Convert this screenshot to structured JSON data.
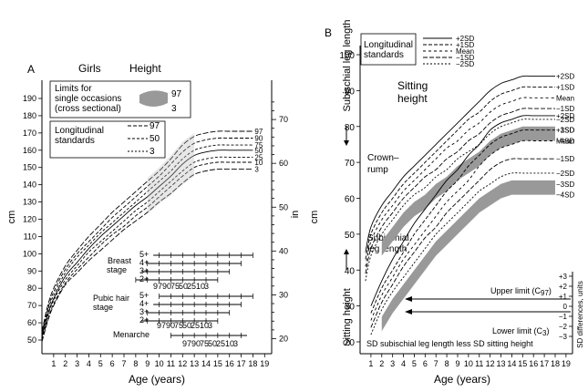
{
  "chart_data": [
    {
      "panel": "A",
      "type": "line",
      "title": "Girls",
      "subtitle": "Height",
      "xlabel": "Age (years)",
      "ylabel_left": "cm",
      "ylabel_right": "in",
      "x_ticks": [
        1,
        2,
        3,
        4,
        5,
        6,
        7,
        8,
        9,
        10,
        11,
        12,
        13,
        14,
        15,
        16,
        17,
        18,
        19
      ],
      "xlim": [
        0,
        19
      ],
      "ylim_cm": [
        45,
        192
      ],
      "y_ticks_cm": [
        50,
        60,
        70,
        80,
        90,
        100,
        110,
        120,
        130,
        140,
        150,
        160,
        170,
        180,
        190
      ],
      "y_ticks_in": [
        20,
        30,
        40,
        50,
        60,
        70
      ],
      "legend_single": "Limits for single occasions (cross sectional)",
      "legend_single_lines": [
        "Limits for",
        "single occasions",
        "(cross sectional)"
      ],
      "legend_single_labels": [
        "97",
        "3"
      ],
      "legend_long": "Longitudinal standards",
      "legend_long_lines": [
        "Longitudinal",
        "standards"
      ],
      "legend_long_labels": [
        "97",
        "50",
        "3"
      ],
      "series": [
        {
          "name": "97",
          "x": [
            0,
            0.5,
            1,
            2,
            3,
            4,
            5,
            6,
            7,
            8,
            9,
            10,
            11,
            12,
            13,
            14,
            15,
            16,
            17,
            18
          ],
          "values": [
            55,
            70,
            80,
            93,
            102,
            110,
            117,
            124,
            130,
            136,
            142,
            148,
            155,
            163,
            168,
            170,
            171,
            171,
            171,
            171
          ]
        },
        {
          "name": "90",
          "x": [
            0,
            0.5,
            1,
            2,
            3,
            4,
            5,
            6,
            7,
            8,
            9,
            10,
            11,
            12,
            13,
            14,
            15,
            16,
            17,
            18
          ],
          "values": [
            54,
            68,
            78,
            91,
            100,
            107,
            114,
            121,
            127,
            133,
            139,
            145,
            152,
            159,
            164,
            166,
            167,
            167,
            167,
            167
          ]
        },
        {
          "name": "75",
          "x": [
            0,
            0.5,
            1,
            2,
            3,
            4,
            5,
            6,
            7,
            8,
            9,
            10,
            11,
            12,
            13,
            14,
            15,
            16,
            17,
            18
          ],
          "values": [
            53,
            67,
            76,
            89,
            98,
            105,
            112,
            118,
            124,
            130,
            136,
            142,
            148,
            155,
            160,
            162,
            163,
            163,
            163,
            163
          ]
        },
        {
          "name": "50",
          "x": [
            0,
            0.5,
            1,
            2,
            3,
            4,
            5,
            6,
            7,
            8,
            9,
            10,
            11,
            12,
            13,
            14,
            15,
            16,
            17,
            18
          ],
          "values": [
            52,
            65,
            74,
            87,
            95,
            103,
            110,
            116,
            122,
            128,
            133,
            139,
            145,
            152,
            157,
            159,
            160,
            160,
            160,
            160
          ]
        },
        {
          "name": "25",
          "x": [
            0,
            0.5,
            1,
            2,
            3,
            4,
            5,
            6,
            7,
            8,
            9,
            10,
            11,
            12,
            13,
            14,
            15,
            16,
            17,
            18
          ],
          "values": [
            51,
            64,
            73,
            85,
            93,
            101,
            107,
            113,
            119,
            125,
            130,
            136,
            142,
            148,
            153,
            155,
            156,
            156,
            156,
            156
          ]
        },
        {
          "name": "10",
          "x": [
            0,
            0.5,
            1,
            2,
            3,
            4,
            5,
            6,
            7,
            8,
            9,
            10,
            11,
            12,
            13,
            14,
            15,
            16,
            17,
            18
          ],
          "values": [
            50,
            62,
            71,
            83,
            91,
            98,
            105,
            111,
            116,
            122,
            127,
            133,
            139,
            145,
            150,
            152,
            153,
            153,
            153,
            153
          ]
        },
        {
          "name": "3",
          "x": [
            0,
            0.5,
            1,
            2,
            3,
            4,
            5,
            6,
            7,
            8,
            9,
            10,
            11,
            12,
            13,
            14,
            15,
            16,
            17,
            18
          ],
          "values": [
            49,
            61,
            70,
            82,
            89,
            96,
            102,
            108,
            114,
            119,
            124,
            130,
            135,
            141,
            146,
            148,
            149,
            149,
            149,
            149
          ]
        }
      ],
      "puberty": {
        "breast_stage_lines": [
          "Breast",
          "stage"
        ],
        "breast_stage_labels": [
          "5+",
          "4+",
          "3+",
          "2+"
        ],
        "pubic_hair_stage_lines": [
          "Pubic hair",
          "stage"
        ],
        "pubic_hair_stage_labels": [
          "5+",
          "4+",
          "3+",
          "2+"
        ],
        "menarche_label": "Menarche",
        "centile_labels": [
          "97",
          "90",
          "75",
          "50",
          "25",
          "10",
          "3"
        ]
      }
    },
    {
      "panel": "B",
      "type": "line",
      "xlabel": "Age (years)",
      "ylabel_left": "cm",
      "top_label": "Sitting height",
      "top_label_lines": [
        "Sitting",
        "height"
      ],
      "crown_rump_label": "Crown–rump",
      "crown_rump_lines": [
        "Crown–",
        "rump"
      ],
      "subischial_label": "Subischial leg length",
      "subischial_lines": [
        "Subischial",
        "leg length"
      ],
      "side_label_top": "Subischial leg length",
      "side_label_bottom": "Sitting height",
      "x_ticks": [
        1,
        2,
        3,
        4,
        5,
        6,
        7,
        8,
        9,
        10,
        11,
        12,
        13,
        14,
        15,
        16,
        17,
        18,
        19
      ],
      "xlim": [
        0,
        19
      ],
      "ylim_cm": [
        17,
        102
      ],
      "y_ticks_cm": [
        20,
        30,
        40,
        50,
        60,
        70,
        80,
        90,
        100
      ],
      "legend": "Longitudinal standards",
      "legend_lines": [
        "Longitudinal",
        "standards"
      ],
      "legend_labels": [
        "+2SD",
        "+1SD",
        "Mean",
        "−1SD",
        "−2SD"
      ],
      "sitting_height_series": [
        {
          "name": "+2SD",
          "x": [
            0.5,
            1,
            2,
            3,
            4,
            5,
            6,
            7,
            8,
            9,
            10,
            11,
            12,
            13,
            14,
            15,
            16,
            17,
            18
          ],
          "values": [
            45,
            52,
            58,
            62,
            66,
            69,
            72,
            75,
            78,
            81,
            84,
            87,
            90,
            92,
            93,
            94,
            94,
            94,
            94
          ]
        },
        {
          "name": "+1SD",
          "x": [
            0.5,
            1,
            2,
            3,
            4,
            5,
            6,
            7,
            8,
            9,
            10,
            11,
            12,
            13,
            14,
            15,
            16,
            17,
            18
          ],
          "values": [
            43,
            50,
            56,
            60,
            64,
            67,
            70,
            73,
            76,
            79,
            82,
            84,
            87,
            89,
            90,
            91,
            91,
            91,
            91
          ]
        },
        {
          "name": "Mean",
          "x": [
            0.5,
            1,
            2,
            3,
            4,
            5,
            6,
            7,
            8,
            9,
            10,
            11,
            12,
            13,
            14,
            15,
            16,
            17,
            18
          ],
          "values": [
            41,
            48,
            54,
            58,
            62,
            65,
            68,
            71,
            74,
            76,
            79,
            81,
            84,
            86,
            87,
            88,
            88,
            88,
            88
          ]
        },
        {
          "name": "−1SD",
          "x": [
            0.5,
            1,
            2,
            3,
            4,
            5,
            6,
            7,
            8,
            9,
            10,
            11,
            12,
            13,
            14,
            15,
            16,
            17,
            18
          ],
          "values": [
            39,
            46,
            52,
            56,
            60,
            63,
            66,
            68,
            71,
            73,
            76,
            78,
            81,
            83,
            84,
            85,
            85,
            85,
            85
          ]
        },
        {
          "name": "−2SD",
          "x": [
            0.5,
            1,
            2,
            3,
            4,
            5,
            6,
            7,
            8,
            9,
            10,
            11,
            12,
            13,
            14,
            15,
            16,
            17,
            18
          ],
          "values": [
            37,
            44,
            50,
            54,
            58,
            61,
            63,
            66,
            68,
            71,
            73,
            75,
            78,
            80,
            81,
            82,
            82,
            82,
            82
          ]
        }
      ],
      "leg_length_series": [
        {
          "name": "+2SD",
          "x": [
            1,
            2,
            3,
            4,
            5,
            6,
            7,
            8,
            9,
            10,
            11,
            12,
            13,
            14,
            15,
            16,
            17,
            18
          ],
          "values": [
            30,
            37,
            43,
            48,
            53,
            57,
            61,
            65,
            68,
            72,
            75,
            79,
            81,
            82,
            83,
            83,
            83,
            83
          ]
        },
        {
          "name": "+1SD",
          "x": [
            1,
            2,
            3,
            4,
            5,
            6,
            7,
            8,
            9,
            10,
            11,
            12,
            13,
            14,
            15,
            16,
            17,
            18
          ],
          "values": [
            28,
            35,
            40,
            45,
            50,
            54,
            58,
            62,
            65,
            69,
            72,
            75,
            77,
            78,
            79,
            79,
            79,
            79
          ]
        },
        {
          "name": "Mean",
          "x": [
            1,
            2,
            3,
            4,
            5,
            6,
            7,
            8,
            9,
            10,
            11,
            12,
            13,
            14,
            15,
            16,
            17,
            18
          ],
          "values": [
            26,
            33,
            38,
            43,
            47,
            51,
            55,
            59,
            62,
            65,
            69,
            72,
            74,
            75,
            76,
            76,
            76,
            76
          ]
        },
        {
          "name": "−1SD",
          "x": [
            1,
            2,
            3,
            4,
            5,
            6,
            7,
            8,
            9,
            10,
            11,
            12,
            13,
            14,
            15,
            16,
            17,
            18
          ],
          "values": [
            24,
            31,
            36,
            41,
            45,
            49,
            52,
            56,
            59,
            62,
            65,
            68,
            70,
            71,
            71,
            71,
            71,
            71
          ]
        },
        {
          "name": "−2SD",
          "x": [
            1,
            2,
            3,
            4,
            5,
            6,
            7,
            8,
            9,
            10,
            11,
            12,
            13,
            14,
            15,
            16,
            17,
            18
          ],
          "values": [
            22,
            29,
            34,
            38,
            42,
            46,
            50,
            53,
            56,
            59,
            62,
            64,
            66,
            67,
            67,
            67,
            67,
            67
          ]
        }
      ],
      "right_labels_top": [
        "+2SD",
        "+1SD",
        "Mean",
        "−1SD",
        "−2SD",
        "−3SD",
        "−4SD"
      ],
      "right_labels_bottom": [
        "+2SD",
        "+1SD",
        "Mean",
        "−1SD",
        "−2SD",
        "−3SD",
        "−4SD"
      ],
      "sd_axis_label": "SD differences, units",
      "sd_axis_ticks": [
        "+3",
        "+2",
        "+1",
        "0",
        "−1",
        "−2",
        "−3"
      ],
      "upper_limit_label": "Upper limit (C",
      "upper_limit_sub": "97",
      "lower_limit_label": "Lower limit (C",
      "lower_limit_sub": "3",
      "sd_difference_label": "SD subischial leg length less SD sitting height",
      "panel_letter": "B"
    }
  ],
  "panel_a_letter": "A",
  "x_tick_labels": [
    "1",
    "2",
    "3",
    "4",
    "5",
    "6",
    "7",
    "8",
    "9",
    "10",
    "11",
    "12",
    "13",
    "14",
    "15",
    "16",
    "17",
    "18",
    "19"
  ]
}
